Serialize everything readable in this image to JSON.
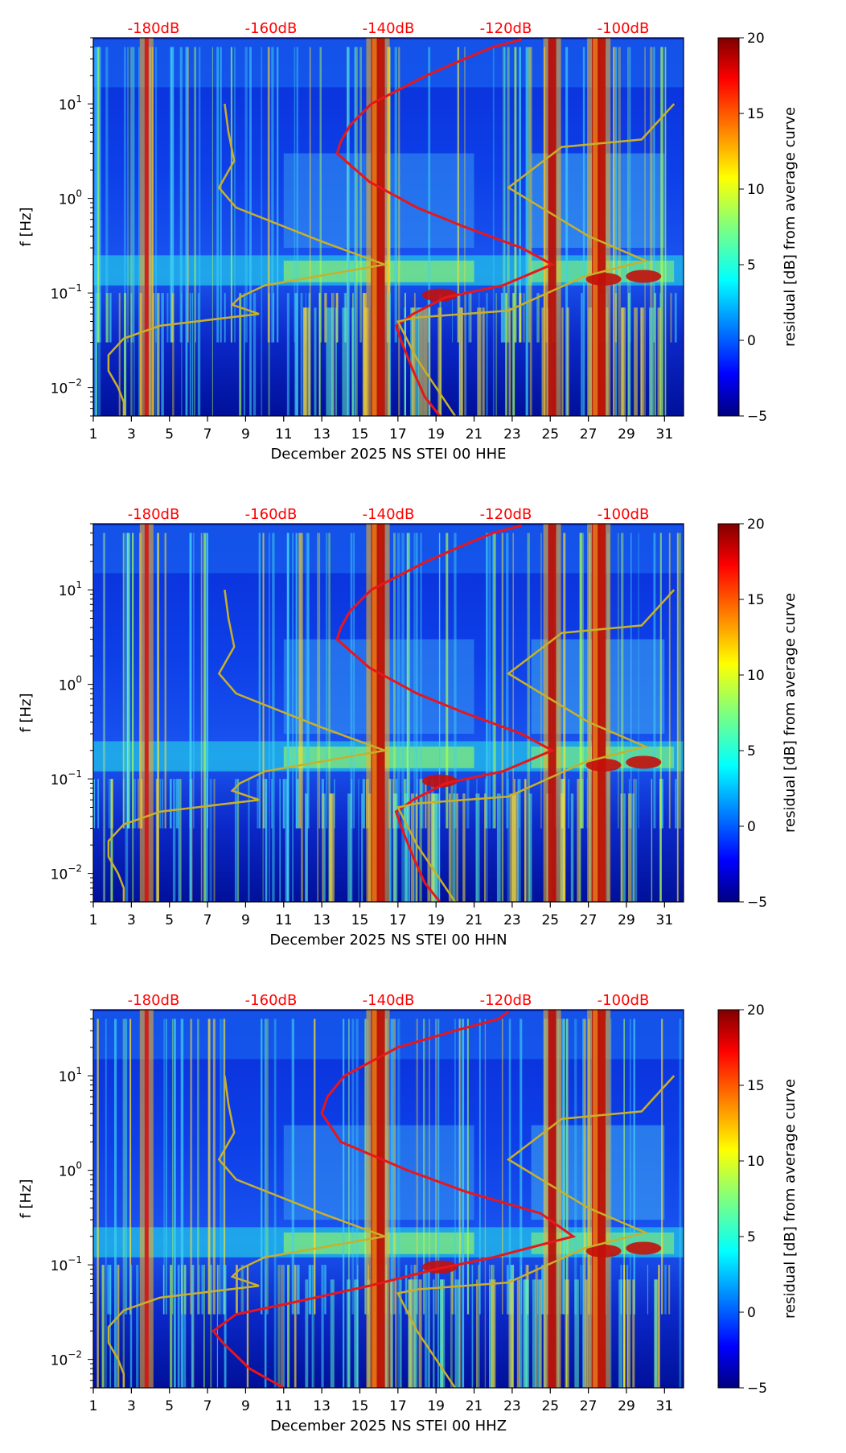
{
  "colors": {
    "nlnm": "#c8b02a",
    "average": "#e8161b",
    "db_scale": "#ff0000"
  },
  "chart_data": [
    {
      "type": "heatmap",
      "xlabel": "December 2025 NS STEI 00 HHE",
      "ylabel": "f [Hz]",
      "x_ticks": [
        "1",
        "3",
        "5",
        "7",
        "9",
        "11",
        "13",
        "15",
        "17",
        "19",
        "21",
        "23",
        "25",
        "27",
        "29",
        "31"
      ],
      "x_range": [
        1,
        32
      ],
      "y_range": [
        0.005,
        50
      ],
      "y_ticks": [
        {
          "value": 0.01,
          "base": "10",
          "exp": "−2"
        },
        {
          "value": 0.1,
          "base": "10",
          "exp": "−1"
        },
        {
          "value": 1,
          "base": "10",
          "exp": "0"
        },
        {
          "value": 10,
          "base": "10",
          "exp": "1"
        }
      ],
      "colorbar": {
        "label": "residual [dB] from average curve",
        "range": [
          -5,
          20
        ],
        "ticks": [
          "−5",
          "0",
          "5",
          "10",
          "15",
          "20"
        ]
      },
      "db_scale_labels": [
        "-180dB",
        "-160dB",
        "-140dB",
        "-120dB",
        "-100dB"
      ],
      "bright_days": [
        3.8,
        15.8,
        16.1,
        25.1,
        27.4,
        27.7
      ],
      "average_curve": [
        [
          0.005,
          19.2
        ],
        [
          0.008,
          18.4
        ],
        [
          0.015,
          17.8
        ],
        [
          0.03,
          17.2
        ],
        [
          0.045,
          16.9
        ],
        [
          0.06,
          17.8
        ],
        [
          0.09,
          19.5
        ],
        [
          0.12,
          22.5
        ],
        [
          0.2,
          25.1
        ],
        [
          0.3,
          23.5
        ],
        [
          0.5,
          20.5
        ],
        [
          0.8,
          18
        ],
        [
          1.5,
          15.5
        ],
        [
          3,
          13.8
        ],
        [
          4,
          14
        ],
        [
          6,
          14.5
        ],
        [
          10,
          15.6
        ],
        [
          20,
          18.5
        ],
        [
          30,
          20.5
        ],
        [
          40,
          22
        ],
        [
          48,
          23.5
        ]
      ],
      "nlnm_curve": [
        [
          0.005,
          2.6
        ],
        [
          0.007,
          2.6
        ],
        [
          0.01,
          2.3
        ],
        [
          0.015,
          1.8
        ],
        [
          0.022,
          1.8
        ],
        [
          0.033,
          2.6
        ],
        [
          0.045,
          4.5
        ],
        [
          0.06,
          9.7
        ],
        [
          0.075,
          8.3
        ],
        [
          0.09,
          8.7
        ],
        [
          0.12,
          10
        ],
        [
          0.2,
          16.3
        ],
        [
          0.35,
          13
        ],
        [
          0.8,
          8.5
        ],
        [
          1.3,
          7.6
        ],
        [
          2.5,
          8.4
        ],
        [
          5,
          8.1
        ],
        [
          10,
          7.9
        ]
      ],
      "nlnm_curve_b": [
        [
          0.005,
          20
        ],
        [
          0.01,
          19
        ],
        [
          0.02,
          18
        ],
        [
          0.05,
          17
        ],
        [
          0.055,
          18
        ],
        [
          0.065,
          22.8
        ],
        [
          0.15,
          26.8
        ],
        [
          0.22,
          30
        ],
        [
          0.4,
          27
        ],
        [
          1.3,
          22.8
        ],
        [
          3.5,
          25.6
        ],
        [
          4.2,
          29.8
        ],
        [
          10,
          31.5
        ]
      ]
    },
    {
      "type": "heatmap",
      "xlabel": "December 2025 NS STEI 00 HHN",
      "ylabel": "f [Hz]",
      "x_ticks": [
        "1",
        "3",
        "5",
        "7",
        "9",
        "11",
        "13",
        "15",
        "17",
        "19",
        "21",
        "23",
        "25",
        "27",
        "29",
        "31"
      ],
      "x_range": [
        1,
        32
      ],
      "y_range": [
        0.005,
        50
      ],
      "y_ticks": [
        {
          "value": 0.01,
          "base": "10",
          "exp": "−2"
        },
        {
          "value": 0.1,
          "base": "10",
          "exp": "−1"
        },
        {
          "value": 1,
          "base": "10",
          "exp": "0"
        },
        {
          "value": 10,
          "base": "10",
          "exp": "1"
        }
      ],
      "colorbar": {
        "label": "residual [dB] from average curve",
        "range": [
          -5,
          20
        ],
        "ticks": [
          "−5",
          "0",
          "5",
          "10",
          "15",
          "20"
        ]
      },
      "db_scale_labels": [
        "-180dB",
        "-160dB",
        "-140dB",
        "-120dB",
        "-100dB"
      ],
      "bright_days": [
        3.8,
        15.8,
        16.1,
        25.1,
        27.4,
        27.7
      ],
      "average_curve": [
        [
          0.005,
          19.2
        ],
        [
          0.008,
          18.4
        ],
        [
          0.015,
          17.8
        ],
        [
          0.03,
          17.2
        ],
        [
          0.045,
          16.9
        ],
        [
          0.06,
          17.8
        ],
        [
          0.09,
          19.5
        ],
        [
          0.12,
          22.5
        ],
        [
          0.2,
          25.1
        ],
        [
          0.3,
          23.5
        ],
        [
          0.5,
          20.5
        ],
        [
          0.8,
          18
        ],
        [
          1.5,
          15.5
        ],
        [
          3,
          13.8
        ],
        [
          4,
          14
        ],
        [
          6,
          14.5
        ],
        [
          10,
          15.6
        ],
        [
          20,
          18.5
        ],
        [
          30,
          20.5
        ],
        [
          40,
          22
        ],
        [
          48,
          23.5
        ]
      ],
      "nlnm_curve": [
        [
          0.005,
          2.6
        ],
        [
          0.007,
          2.6
        ],
        [
          0.01,
          2.3
        ],
        [
          0.015,
          1.8
        ],
        [
          0.022,
          1.8
        ],
        [
          0.033,
          2.6
        ],
        [
          0.045,
          4.5
        ],
        [
          0.06,
          9.7
        ],
        [
          0.075,
          8.3
        ],
        [
          0.09,
          8.7
        ],
        [
          0.12,
          10
        ],
        [
          0.2,
          16.3
        ],
        [
          0.35,
          13
        ],
        [
          0.8,
          8.5
        ],
        [
          1.3,
          7.6
        ],
        [
          2.5,
          8.4
        ],
        [
          5,
          8.1
        ],
        [
          10,
          7.9
        ]
      ],
      "nlnm_curve_b": [
        [
          0.005,
          20
        ],
        [
          0.01,
          19
        ],
        [
          0.02,
          18
        ],
        [
          0.05,
          17
        ],
        [
          0.055,
          18
        ],
        [
          0.065,
          22.8
        ],
        [
          0.15,
          26.8
        ],
        [
          0.22,
          30
        ],
        [
          0.4,
          27
        ],
        [
          1.3,
          22.8
        ],
        [
          3.5,
          25.6
        ],
        [
          4.2,
          29.8
        ],
        [
          10,
          31.5
        ]
      ]
    },
    {
      "type": "heatmap",
      "xlabel": "December 2025 NS STEI 00 HHZ",
      "ylabel": "f [Hz]",
      "x_ticks": [
        "1",
        "3",
        "5",
        "7",
        "9",
        "11",
        "13",
        "15",
        "17",
        "19",
        "21",
        "23",
        "25",
        "27",
        "29",
        "31"
      ],
      "x_range": [
        1,
        32
      ],
      "y_range": [
        0.005,
        50
      ],
      "y_ticks": [
        {
          "value": 0.01,
          "base": "10",
          "exp": "−2"
        },
        {
          "value": 0.1,
          "base": "10",
          "exp": "−1"
        },
        {
          "value": 1,
          "base": "10",
          "exp": "0"
        },
        {
          "value": 10,
          "base": "10",
          "exp": "1"
        }
      ],
      "colorbar": {
        "label": "residual [dB] from average curve",
        "range": [
          -5,
          20
        ],
        "ticks": [
          "−5",
          "0",
          "5",
          "10",
          "15",
          "20"
        ]
      },
      "db_scale_labels": [
        "-180dB",
        "-160dB",
        "-140dB",
        "-120dB",
        "-100dB"
      ],
      "bright_days": [
        3.8,
        15.8,
        16.1,
        25.1,
        27.4,
        27.7
      ],
      "average_curve": [
        [
          0.005,
          11
        ],
        [
          0.008,
          9.2
        ],
        [
          0.015,
          7.8
        ],
        [
          0.02,
          7.3
        ],
        [
          0.03,
          8.5
        ],
        [
          0.04,
          11.5
        ],
        [
          0.06,
          15.5
        ],
        [
          0.09,
          19
        ],
        [
          0.12,
          22
        ],
        [
          0.2,
          26.2
        ],
        [
          0.35,
          24.5
        ],
        [
          0.6,
          20.5
        ],
        [
          1,
          17.5
        ],
        [
          2,
          14
        ],
        [
          4,
          13
        ],
        [
          6,
          13.3
        ],
        [
          10,
          14.2
        ],
        [
          20,
          17
        ],
        [
          30,
          20
        ],
        [
          40,
          22.3
        ],
        [
          48,
          22.8
        ]
      ],
      "nlnm_curve": [
        [
          0.005,
          2.6
        ],
        [
          0.007,
          2.6
        ],
        [
          0.01,
          2.3
        ],
        [
          0.015,
          1.8
        ],
        [
          0.022,
          1.8
        ],
        [
          0.033,
          2.6
        ],
        [
          0.045,
          4.5
        ],
        [
          0.06,
          9.7
        ],
        [
          0.075,
          8.3
        ],
        [
          0.09,
          8.7
        ],
        [
          0.12,
          10
        ],
        [
          0.2,
          16.3
        ],
        [
          0.35,
          13
        ],
        [
          0.8,
          8.5
        ],
        [
          1.3,
          7.6
        ],
        [
          2.5,
          8.4
        ],
        [
          5,
          8.1
        ],
        [
          10,
          7.9
        ]
      ],
      "nlnm_curve_b": [
        [
          0.005,
          20
        ],
        [
          0.01,
          19
        ],
        [
          0.02,
          18
        ],
        [
          0.05,
          17
        ],
        [
          0.055,
          18
        ],
        [
          0.065,
          22.8
        ],
        [
          0.15,
          26.8
        ],
        [
          0.22,
          30
        ],
        [
          0.4,
          27
        ],
        [
          1.3,
          22.8
        ],
        [
          3.5,
          25.6
        ],
        [
          4.2,
          29.8
        ],
        [
          10,
          31.5
        ]
      ]
    }
  ]
}
